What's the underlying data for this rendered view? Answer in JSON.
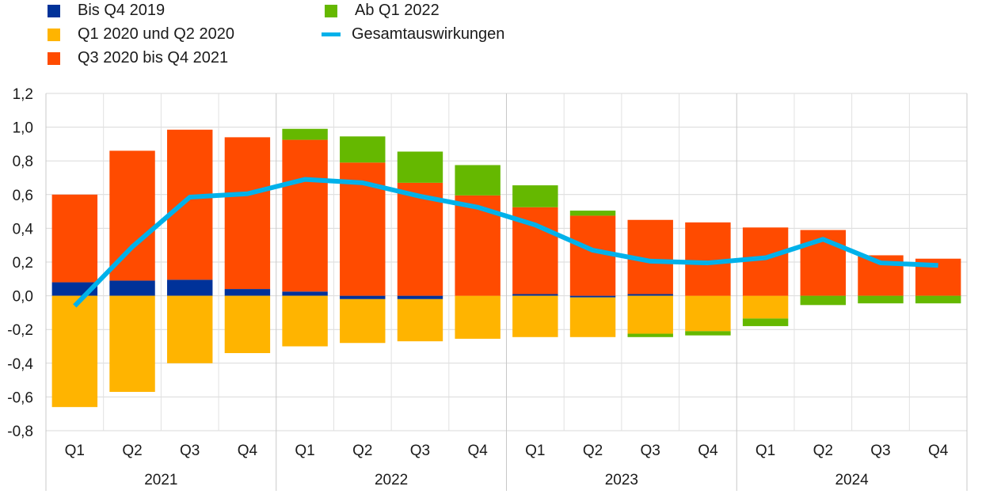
{
  "chart_data": {
    "type": "bar",
    "stacked": true,
    "title": "",
    "xlabel": "",
    "ylabel": "",
    "ylim": [
      -0.8,
      1.2
    ],
    "yticks": [
      -0.8,
      -0.6,
      -0.4,
      -0.2,
      0.0,
      0.2,
      0.4,
      0.6,
      0.8,
      1.0,
      1.2
    ],
    "ytick_labels": [
      "-0,8",
      "-0,6",
      "-0,4",
      "-0,2",
      "0,0",
      "0,2",
      "0,4",
      "0,6",
      "0,8",
      "1,0",
      "1,2"
    ],
    "grid": true,
    "categories": [
      "Q1",
      "Q2",
      "Q3",
      "Q4",
      "Q1",
      "Q2",
      "Q3",
      "Q4",
      "Q1",
      "Q2",
      "Q3",
      "Q4",
      "Q1",
      "Q2",
      "Q3",
      "Q4"
    ],
    "year_groups": [
      {
        "label": "2021",
        "count": 4
      },
      {
        "label": "2022",
        "count": 4
      },
      {
        "label": "2023",
        "count": 4
      },
      {
        "label": "2024",
        "count": 4
      }
    ],
    "legend_position": "top-left",
    "series": [
      {
        "name": "Bis Q4 2019",
        "color": "#003299",
        "values": [
          0.08,
          0.09,
          0.095,
          0.04,
          0.025,
          -0.02,
          -0.02,
          0.0,
          0.01,
          -0.01,
          0.01,
          0.0,
          0.0,
          0.0,
          0.0,
          0.0
        ]
      },
      {
        "name": "Q1 2020 und Q2 2020",
        "color": "#FFB400",
        "values": [
          -0.66,
          -0.57,
          -0.4,
          -0.34,
          -0.3,
          -0.26,
          -0.25,
          -0.255,
          -0.245,
          -0.235,
          -0.225,
          -0.21,
          -0.135,
          0.0,
          0.0,
          0.0
        ]
      },
      {
        "name": "Q3 2020 bis Q4 2021",
        "color": "#FF4B00",
        "values": [
          0.52,
          0.77,
          0.89,
          0.9,
          0.9,
          0.79,
          0.67,
          0.595,
          0.515,
          0.475,
          0.44,
          0.435,
          0.405,
          0.39,
          0.24,
          0.22
        ]
      },
      {
        "name": "Ab Q1 2022",
        "color": "#65B800",
        "values": [
          0.0,
          0.0,
          0.0,
          0.0,
          0.065,
          0.155,
          0.185,
          0.18,
          0.13,
          0.03,
          -0.02,
          -0.025,
          -0.045,
          -0.055,
          -0.045,
          -0.045
        ]
      }
    ],
    "line": {
      "name": "Gesamtauswirkungen",
      "color": "#00B1EA",
      "values": [
        -0.06,
        0.29,
        0.585,
        0.605,
        0.69,
        0.67,
        0.59,
        0.525,
        0.42,
        0.27,
        0.205,
        0.195,
        0.225,
        0.335,
        0.195,
        0.18
      ]
    }
  }
}
